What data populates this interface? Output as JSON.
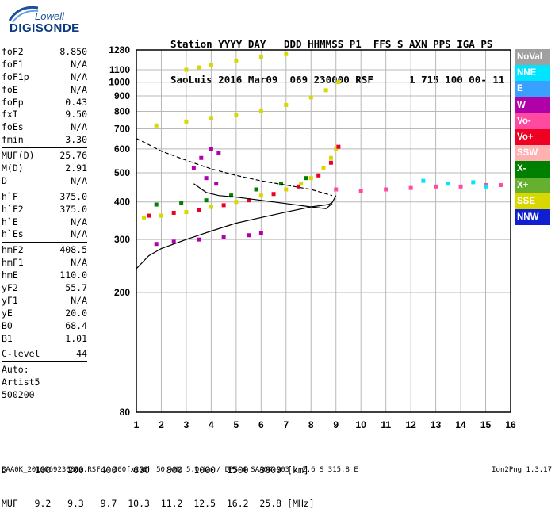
{
  "brand": {
    "line1": "Lowell",
    "line2": "DIGISONDE"
  },
  "header": {
    "line1": "Station YYYY DAY   DDD HHMMSS P1  FFS S AXN PPS IGA PS",
    "line2": "SaoLuis 2016 Mar09  069 230000 RSF      1 715 100 00- 11"
  },
  "params": [
    {
      "name": "foF2",
      "value": "8.850"
    },
    {
      "name": "foF1",
      "value": "N/A"
    },
    {
      "name": "foF1p",
      "value": "N/A"
    },
    {
      "name": "foE",
      "value": "N/A"
    },
    {
      "name": "foEp",
      "value": "0.43"
    },
    {
      "name": "fxI",
      "value": "9.50"
    },
    {
      "name": "foEs",
      "value": "N/A"
    },
    {
      "name": "fmin",
      "value": "3.30"
    },
    {
      "sep": true
    },
    {
      "name": "MUF(D)",
      "value": "25.76"
    },
    {
      "name": "M(D)",
      "value": "2.91"
    },
    {
      "name": "D",
      "value": "N/A"
    },
    {
      "sep": true
    },
    {
      "name": "h`F",
      "value": "375.0"
    },
    {
      "name": "h`F2",
      "value": "375.0"
    },
    {
      "name": "h`E",
      "value": "N/A"
    },
    {
      "name": "h`Es",
      "value": "N/A"
    },
    {
      "sep": true
    },
    {
      "name": "hmF2",
      "value": "408.5"
    },
    {
      "name": "hmF1",
      "value": "N/A"
    },
    {
      "name": "hmE",
      "value": "110.0"
    },
    {
      "name": "yF2",
      "value": "55.7"
    },
    {
      "name": "yF1",
      "value": "N/A"
    },
    {
      "name": "yE",
      "value": "20.0"
    },
    {
      "name": "B0",
      "value": "68.4"
    },
    {
      "name": "B1",
      "value": "1.01"
    },
    {
      "sep": true
    },
    {
      "name": "C-level",
      "value": "44"
    },
    {
      "sep": true
    }
  ],
  "autoscaling": [
    "Auto:",
    "Artist5",
    "500200"
  ],
  "muf_table": {
    "d_label": "D",
    "d_values": [
      "100",
      "200",
      "400",
      "600",
      "800",
      "1000",
      "1500",
      "3000"
    ],
    "d_unit": "[km]",
    "muf_label": "MUF",
    "muf_values": [
      "9.2",
      "9.3",
      "9.7",
      "10.3",
      "11.2",
      "12.5",
      "16.2",
      "25.8"
    ],
    "muf_unit": "[MHz]"
  },
  "footer": "SAA0K_2016069230000.RSF / 300fx256h 50 kHz 5.0 km / DPS-4 SAA0K 903 / 2.6 S 315.8 E",
  "version": "Ion2Png 1.3.17",
  "legend": [
    {
      "label": "NoVal",
      "color": "#a0a0a0"
    },
    {
      "label": "NNE",
      "color": "#00e5ff"
    },
    {
      "label": "E",
      "color": "#3aa0ff"
    },
    {
      "label": "W",
      "color": "#b000a8"
    },
    {
      "label": "Vo-",
      "color": "#ff4aa0"
    },
    {
      "label": "Vo+",
      "color": "#ee0022"
    },
    {
      "label": "SSW",
      "color": "#ffb0b0"
    },
    {
      "label": "X-",
      "color": "#008000"
    },
    {
      "label": "X+",
      "color": "#66b030"
    },
    {
      "label": "SSE",
      "color": "#d8d800"
    },
    {
      "label": "NNW",
      "color": "#1020d0"
    }
  ],
  "chart_data": {
    "type": "scatter",
    "xlabel": "",
    "ylabel": "",
    "xlim": [
      1,
      16
    ],
    "ylim": [
      80,
      1280
    ],
    "y_scale": "log",
    "x_ticks": [
      1,
      2,
      3,
      4,
      5,
      6,
      7,
      8,
      9,
      10,
      11,
      12,
      13,
      14,
      15,
      16
    ],
    "y_ticks": [
      80,
      200,
      300,
      400,
      500,
      600,
      700,
      800,
      900,
      1000,
      1100,
      1280
    ],
    "grid": true,
    "legend_position": "right",
    "series": [
      {
        "color": "#d8d800",
        "points": [
          [
            1.3,
            355
          ],
          [
            2,
            360
          ],
          [
            3,
            370
          ],
          [
            4,
            385
          ],
          [
            5,
            400
          ],
          [
            6,
            420
          ],
          [
            7,
            440
          ],
          [
            7.6,
            460
          ],
          [
            8,
            480
          ],
          [
            8.5,
            520
          ],
          [
            8.8,
            560
          ],
          [
            9,
            600
          ]
        ]
      },
      {
        "color": "#ee0022",
        "points": [
          [
            1.5,
            360
          ],
          [
            2.5,
            368
          ],
          [
            3.5,
            375
          ],
          [
            4.5,
            390
          ],
          [
            5.5,
            405
          ],
          [
            6.5,
            425
          ],
          [
            7.5,
            450
          ],
          [
            8.3,
            490
          ],
          [
            8.8,
            540
          ],
          [
            9.1,
            610
          ]
        ]
      },
      {
        "color": "#008000",
        "points": [
          [
            1.8,
            392
          ],
          [
            2.8,
            396
          ],
          [
            3.8,
            405
          ],
          [
            4.8,
            420
          ],
          [
            5.8,
            440
          ],
          [
            6.8,
            460
          ],
          [
            7.8,
            480
          ]
        ]
      },
      {
        "color": "#d8d800",
        "points": [
          [
            1.8,
            718
          ],
          [
            3,
            740
          ],
          [
            4,
            760
          ],
          [
            5,
            780
          ],
          [
            6,
            805
          ],
          [
            7,
            840
          ],
          [
            8,
            890
          ],
          [
            8.6,
            940
          ],
          [
            9.1,
            1000
          ]
        ]
      },
      {
        "color": "#d8d800",
        "points": [
          [
            3,
            1100
          ],
          [
            3.5,
            1120
          ],
          [
            4,
            1140
          ],
          [
            5,
            1180
          ],
          [
            6,
            1210
          ],
          [
            7,
            1240
          ]
        ]
      },
      {
        "color": "#b000a8",
        "points": [
          [
            1.8,
            290
          ],
          [
            2.5,
            295
          ],
          [
            3.5,
            300
          ],
          [
            4.5,
            305
          ],
          [
            5.5,
            310
          ],
          [
            6,
            315
          ]
        ]
      },
      {
        "color": "#b000a8",
        "points": [
          [
            3.3,
            520
          ],
          [
            3.6,
            560
          ],
          [
            4,
            600
          ],
          [
            4.3,
            580
          ],
          [
            3.8,
            480
          ],
          [
            4.2,
            460
          ]
        ]
      },
      {
        "color": "#ff4aa0",
        "points": [
          [
            9,
            440
          ],
          [
            10,
            435
          ],
          [
            11,
            440
          ],
          [
            12,
            445
          ],
          [
            13,
            450
          ],
          [
            14,
            450
          ],
          [
            15,
            455
          ],
          [
            15.6,
            455
          ]
        ]
      },
      {
        "color": "#00e5ff",
        "points": [
          [
            12.5,
            470
          ],
          [
            13.5,
            460
          ],
          [
            14.5,
            465
          ],
          [
            15,
            450
          ]
        ]
      }
    ],
    "lines": [
      {
        "name": "profile",
        "style": "solid",
        "points": [
          [
            1,
            240
          ],
          [
            1.5,
            265
          ],
          [
            2,
            280
          ],
          [
            3,
            300
          ],
          [
            4,
            320
          ],
          [
            5,
            340
          ],
          [
            6,
            355
          ],
          [
            7,
            370
          ],
          [
            8,
            385
          ],
          [
            8.7,
            392
          ],
          [
            8.85,
            398
          ],
          [
            9,
            420
          ]
        ]
      },
      {
        "name": "bottomside",
        "style": "solid",
        "points": [
          [
            3.3,
            460
          ],
          [
            3.8,
            430
          ],
          [
            4.3,
            420
          ],
          [
            5,
            415
          ],
          [
            6,
            405
          ],
          [
            7,
            395
          ],
          [
            8,
            385
          ],
          [
            8.6,
            380
          ],
          [
            8.85,
            395
          ]
        ]
      },
      {
        "name": "topside",
        "style": "dashed",
        "points": [
          [
            1,
            650
          ],
          [
            1.5,
            620
          ],
          [
            2,
            590
          ],
          [
            3,
            550
          ],
          [
            4,
            515
          ],
          [
            5,
            490
          ],
          [
            6,
            470
          ],
          [
            7,
            455
          ],
          [
            8,
            440
          ],
          [
            8.85,
            420
          ]
        ]
      }
    ]
  }
}
